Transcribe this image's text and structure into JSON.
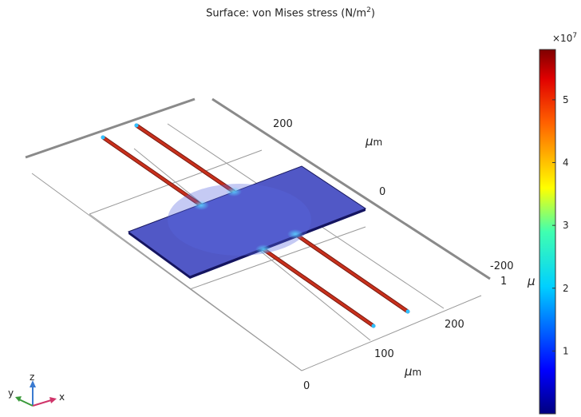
{
  "title": {
    "prefix": "Surface: von Mises stress (N/m",
    "exp": "2",
    "suffix": ")"
  },
  "colors": {
    "plate": "#5258c4",
    "beam": "#b0281c",
    "grid": "#9a9a9a",
    "frame": "#8a8a8a",
    "axis_x": "#d0356a",
    "axis_y": "#3a9a3a",
    "axis_z": "#3a7ad0"
  },
  "axes": {
    "y_ticks": [
      "200",
      "0",
      "-200"
    ],
    "y_unit_mu": "μ",
    "y_unit_m": "m",
    "y_edge_tick": "1",
    "y_edge_mu": "μ",
    "x_ticks": [
      "0",
      "100",
      "200"
    ],
    "x_unit_mu": "μ",
    "x_unit_m": "m"
  },
  "colorbar": {
    "multiplier_base": "×10",
    "multiplier_exp": "7",
    "ticks": [
      "5",
      "4",
      "3",
      "2",
      "1"
    ],
    "min": 0,
    "max": 5.8
  },
  "triad": {
    "z_label": "z",
    "y_label": "y",
    "x_label": "x"
  }
}
